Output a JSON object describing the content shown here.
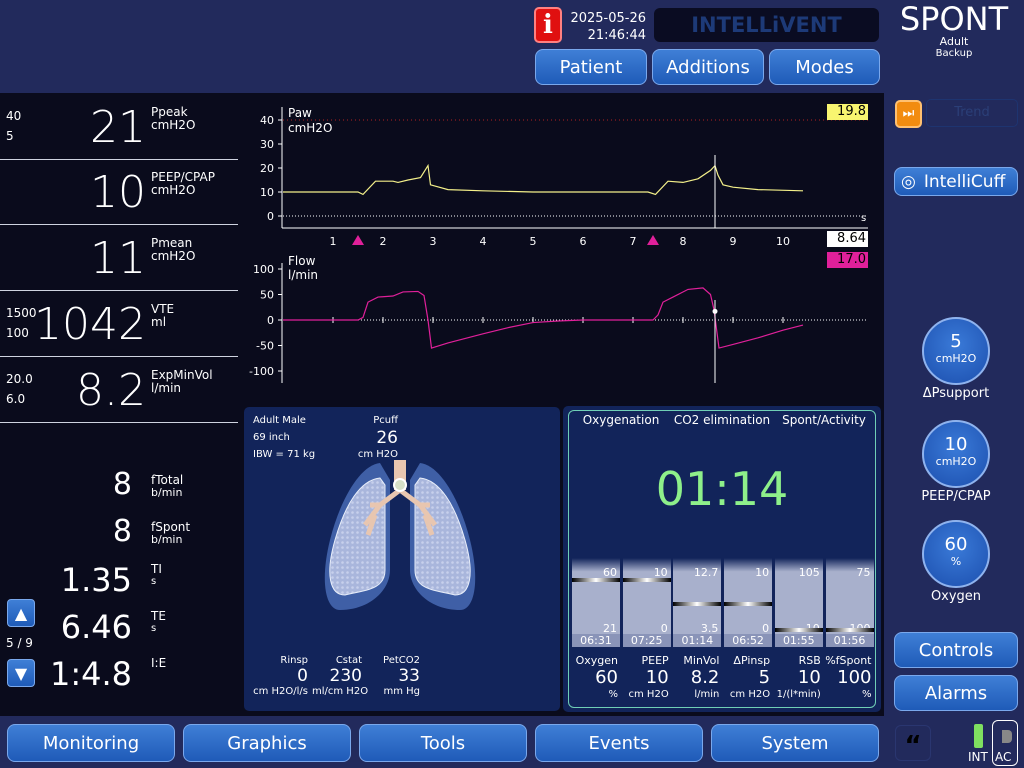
{
  "header": {
    "info_icon": "info-icon",
    "date": "2025-05-26",
    "time": "21:46:44",
    "brand": "INTELLiVENT",
    "buttons": [
      "Patient",
      "Additions",
      "Modes"
    ],
    "mode": "SPONT",
    "patient_group": "Adult",
    "mode_sub": "Backup"
  },
  "left": {
    "rows": [
      {
        "value": "21",
        "name": "Ppeak",
        "unit": "cmH2O",
        "high": "40",
        "low": "5"
      },
      {
        "value": "10",
        "name": "PEEP/CPAP",
        "unit": "cmH2O",
        "high": "",
        "low": ""
      },
      {
        "value": "11",
        "name": "Pmean",
        "unit": "cmH2O",
        "high": "",
        "low": ""
      },
      {
        "value": "1042",
        "name": "VTE",
        "unit": "ml",
        "high": "1500",
        "low": "100"
      },
      {
        "value": "8.2",
        "name": "ExpMinVol",
        "unit": "l/min",
        "high": "20.0",
        "low": "6.0"
      }
    ],
    "secondary": [
      {
        "value": "8",
        "name": "fTotal",
        "unit": "b/min"
      },
      {
        "value": "8",
        "name": "fSpont",
        "unit": "b/min"
      },
      {
        "value": "1.35",
        "name": "TI",
        "unit": "s"
      },
      {
        "value": "6.46",
        "name": "TE",
        "unit": "s"
      },
      {
        "value": "1:4.8",
        "name": "I:E",
        "unit": ""
      }
    ],
    "page": "5 / 9"
  },
  "waveforms": {
    "x_ticks": [
      "1",
      "2",
      "3",
      "4",
      "5",
      "6",
      "7",
      "8",
      "9",
      "10"
    ],
    "x_unit": "s",
    "cursor_time": "8.64",
    "trigger_times": [
      1.5,
      7.4
    ],
    "paw": {
      "label": "Paw",
      "unit": "cmH2O",
      "cursor_value": "19.8",
      "color": "#f4f08a",
      "y_ticks": [
        "40",
        "30",
        "20",
        "10",
        "0"
      ],
      "limit_line": 40,
      "points": [
        [
          0,
          10
        ],
        [
          1.5,
          10
        ],
        [
          1.6,
          9
        ],
        [
          1.85,
          14.5
        ],
        [
          2.2,
          14.5
        ],
        [
          2.3,
          14
        ],
        [
          2.5,
          15
        ],
        [
          2.75,
          16
        ],
        [
          2.9,
          21
        ],
        [
          2.95,
          13
        ],
        [
          3.3,
          11
        ],
        [
          4,
          10.5
        ],
        [
          5,
          10
        ],
        [
          7.3,
          10
        ],
        [
          7.45,
          9
        ],
        [
          7.7,
          14.5
        ],
        [
          8,
          14
        ],
        [
          8.3,
          15.5
        ],
        [
          8.55,
          19
        ],
        [
          8.64,
          21
        ],
        [
          8.7,
          17
        ],
        [
          8.8,
          13
        ],
        [
          9,
          12
        ],
        [
          9.5,
          11
        ],
        [
          10.4,
          10.5
        ]
      ]
    },
    "flow": {
      "label": "Flow",
      "unit": "l/min",
      "cursor_value": "17.0",
      "color": "#e0209a",
      "y_ticks": [
        "100",
        "50",
        "0",
        "-50",
        "-100"
      ],
      "points": [
        [
          0,
          0
        ],
        [
          1.5,
          0
        ],
        [
          1.6,
          5
        ],
        [
          1.7,
          35
        ],
        [
          1.9,
          45
        ],
        [
          2.2,
          47
        ],
        [
          2.4,
          55
        ],
        [
          2.7,
          56
        ],
        [
          2.82,
          48
        ],
        [
          2.9,
          0
        ],
        [
          2.97,
          -55
        ],
        [
          3.3,
          -45
        ],
        [
          4,
          -27
        ],
        [
          4.5,
          -15
        ],
        [
          5,
          -5
        ],
        [
          5.5,
          -2
        ],
        [
          6,
          0
        ],
        [
          7.4,
          0
        ],
        [
          7.5,
          10
        ],
        [
          7.6,
          35
        ],
        [
          7.8,
          45
        ],
        [
          8.1,
          60
        ],
        [
          8.4,
          63
        ],
        [
          8.55,
          50
        ],
        [
          8.62,
          20
        ],
        [
          8.66,
          -10
        ],
        [
          8.72,
          -55
        ],
        [
          9,
          -48
        ],
        [
          9.5,
          -35
        ],
        [
          10,
          -20
        ],
        [
          10.4,
          -10
        ]
      ]
    }
  },
  "lung": {
    "patient": "Adult Male",
    "height": "69 inch",
    "ibw": "IBW = 71 kg",
    "pcuff_label": "Pcuff",
    "pcuff_value": "26",
    "pcuff_unit": "cm H2O",
    "params": [
      {
        "name": "Rinsp",
        "value": "0",
        "unit": "cm H2O/l/s"
      },
      {
        "name": "Cstat",
        "value": "230",
        "unit": "ml/cm H2O"
      },
      {
        "name": "PetCO2",
        "value": "33",
        "unit": "mm Hg"
      }
    ]
  },
  "intellivent": {
    "groups": [
      "Oxygenation",
      "CO2 elimination",
      "Spont/Activity"
    ],
    "timer": "01:14",
    "columns": [
      {
        "name": "Oxygen",
        "value": "60",
        "unit": "%",
        "top": "60",
        "bottom": "21",
        "time": "06:31",
        "level": 0.85
      },
      {
        "name": "PEEP",
        "value": "10",
        "unit": "cm H2O",
        "top": "10",
        "bottom": "0",
        "time": "07:25",
        "level": 0.85
      },
      {
        "name": "MinVol",
        "value": "8.2",
        "unit": "l/min",
        "top": "12.7",
        "bottom": "3.5",
        "time": "01:14",
        "level": 0.45
      },
      {
        "name": "ΔPinsp",
        "value": "5",
        "unit": "cm H2O",
        "top": "10",
        "bottom": "0",
        "time": "06:52",
        "level": 0.45
      },
      {
        "name": "RSB",
        "value": "10",
        "unit": "1/(l*min)",
        "top": "105",
        "bottom": "10",
        "time": "01:55",
        "level": 0.02
      },
      {
        "name": "%fSpont",
        "value": "100",
        "unit": "%",
        "top": "75",
        "bottom": "100",
        "time": "01:56",
        "level": 0.02
      }
    ]
  },
  "right": {
    "trend": "Trend",
    "intellicuff": "IntelliCuff",
    "knobs": [
      {
        "value": "5",
        "unit": "cmH2O",
        "label": "ΔPsupport"
      },
      {
        "value": "10",
        "unit": "cmH2O",
        "label": "PEEP/CPAP"
      },
      {
        "value": "60",
        "unit": "%",
        "label": "Oxygen"
      }
    ],
    "controls": "Controls",
    "alarms": "Alarms"
  },
  "footer": {
    "tabs": [
      "Monitoring",
      "Graphics",
      "Tools",
      "Events",
      "System"
    ],
    "int": "INT",
    "ac": "AC"
  }
}
